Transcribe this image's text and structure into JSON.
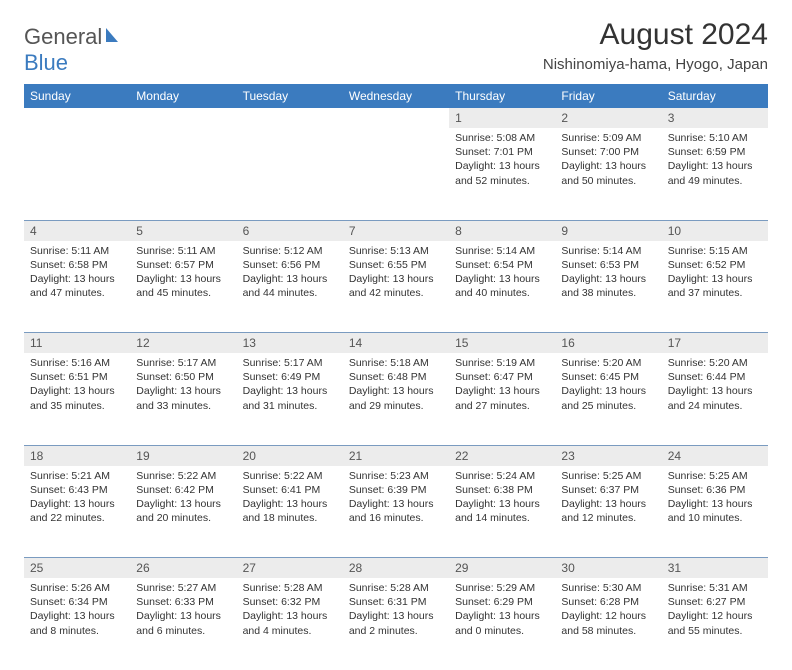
{
  "brand": {
    "part1": "General",
    "part2": "Blue"
  },
  "title": "August 2024",
  "subtitle": "Nishinomiya-hama, Hyogo, Japan",
  "colors": {
    "header_bg": "#3b7bbf",
    "header_text": "#ffffff",
    "daynum_bg": "#ececec",
    "row_separator": "#7a9bc0",
    "body_text": "#333333",
    "page_bg": "#ffffff"
  },
  "day_headers": [
    "Sunday",
    "Monday",
    "Tuesday",
    "Wednesday",
    "Thursday",
    "Friday",
    "Saturday"
  ],
  "weeks": [
    [
      null,
      null,
      null,
      null,
      {
        "n": "1",
        "sr": "5:08 AM",
        "ss": "7:01 PM",
        "dl": "13 hours and 52 minutes."
      },
      {
        "n": "2",
        "sr": "5:09 AM",
        "ss": "7:00 PM",
        "dl": "13 hours and 50 minutes."
      },
      {
        "n": "3",
        "sr": "5:10 AM",
        "ss": "6:59 PM",
        "dl": "13 hours and 49 minutes."
      }
    ],
    [
      {
        "n": "4",
        "sr": "5:11 AM",
        "ss": "6:58 PM",
        "dl": "13 hours and 47 minutes."
      },
      {
        "n": "5",
        "sr": "5:11 AM",
        "ss": "6:57 PM",
        "dl": "13 hours and 45 minutes."
      },
      {
        "n": "6",
        "sr": "5:12 AM",
        "ss": "6:56 PM",
        "dl": "13 hours and 44 minutes."
      },
      {
        "n": "7",
        "sr": "5:13 AM",
        "ss": "6:55 PM",
        "dl": "13 hours and 42 minutes."
      },
      {
        "n": "8",
        "sr": "5:14 AM",
        "ss": "6:54 PM",
        "dl": "13 hours and 40 minutes."
      },
      {
        "n": "9",
        "sr": "5:14 AM",
        "ss": "6:53 PM",
        "dl": "13 hours and 38 minutes."
      },
      {
        "n": "10",
        "sr": "5:15 AM",
        "ss": "6:52 PM",
        "dl": "13 hours and 37 minutes."
      }
    ],
    [
      {
        "n": "11",
        "sr": "5:16 AM",
        "ss": "6:51 PM",
        "dl": "13 hours and 35 minutes."
      },
      {
        "n": "12",
        "sr": "5:17 AM",
        "ss": "6:50 PM",
        "dl": "13 hours and 33 minutes."
      },
      {
        "n": "13",
        "sr": "5:17 AM",
        "ss": "6:49 PM",
        "dl": "13 hours and 31 minutes."
      },
      {
        "n": "14",
        "sr": "5:18 AM",
        "ss": "6:48 PM",
        "dl": "13 hours and 29 minutes."
      },
      {
        "n": "15",
        "sr": "5:19 AM",
        "ss": "6:47 PM",
        "dl": "13 hours and 27 minutes."
      },
      {
        "n": "16",
        "sr": "5:20 AM",
        "ss": "6:45 PM",
        "dl": "13 hours and 25 minutes."
      },
      {
        "n": "17",
        "sr": "5:20 AM",
        "ss": "6:44 PM",
        "dl": "13 hours and 24 minutes."
      }
    ],
    [
      {
        "n": "18",
        "sr": "5:21 AM",
        "ss": "6:43 PM",
        "dl": "13 hours and 22 minutes."
      },
      {
        "n": "19",
        "sr": "5:22 AM",
        "ss": "6:42 PM",
        "dl": "13 hours and 20 minutes."
      },
      {
        "n": "20",
        "sr": "5:22 AM",
        "ss": "6:41 PM",
        "dl": "13 hours and 18 minutes."
      },
      {
        "n": "21",
        "sr": "5:23 AM",
        "ss": "6:39 PM",
        "dl": "13 hours and 16 minutes."
      },
      {
        "n": "22",
        "sr": "5:24 AM",
        "ss": "6:38 PM",
        "dl": "13 hours and 14 minutes."
      },
      {
        "n": "23",
        "sr": "5:25 AM",
        "ss": "6:37 PM",
        "dl": "13 hours and 12 minutes."
      },
      {
        "n": "24",
        "sr": "5:25 AM",
        "ss": "6:36 PM",
        "dl": "13 hours and 10 minutes."
      }
    ],
    [
      {
        "n": "25",
        "sr": "5:26 AM",
        "ss": "6:34 PM",
        "dl": "13 hours and 8 minutes."
      },
      {
        "n": "26",
        "sr": "5:27 AM",
        "ss": "6:33 PM",
        "dl": "13 hours and 6 minutes."
      },
      {
        "n": "27",
        "sr": "5:28 AM",
        "ss": "6:32 PM",
        "dl": "13 hours and 4 minutes."
      },
      {
        "n": "28",
        "sr": "5:28 AM",
        "ss": "6:31 PM",
        "dl": "13 hours and 2 minutes."
      },
      {
        "n": "29",
        "sr": "5:29 AM",
        "ss": "6:29 PM",
        "dl": "13 hours and 0 minutes."
      },
      {
        "n": "30",
        "sr": "5:30 AM",
        "ss": "6:28 PM",
        "dl": "12 hours and 58 minutes."
      },
      {
        "n": "31",
        "sr": "5:31 AM",
        "ss": "6:27 PM",
        "dl": "12 hours and 55 minutes."
      }
    ]
  ],
  "labels": {
    "sunrise": "Sunrise:",
    "sunset": "Sunset:",
    "daylight": "Daylight:"
  }
}
